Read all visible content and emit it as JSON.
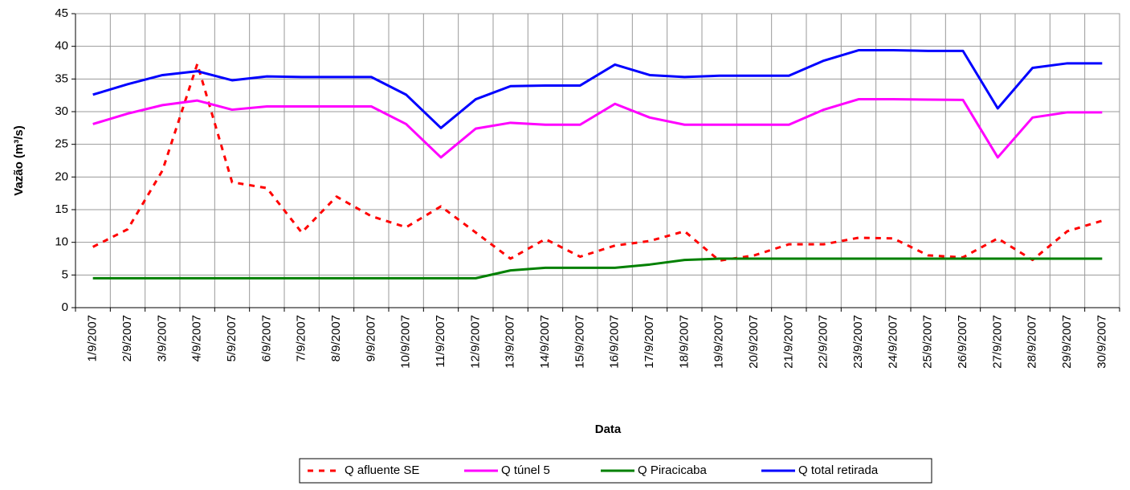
{
  "chart_data": {
    "type": "line",
    "x_label": "Data",
    "y_label": "Vazão (m³/s)",
    "categories": [
      "1/9/2007",
      "2/9/2007",
      "3/9/2007",
      "4/9/2007",
      "5/9/2007",
      "6/9/2007",
      "7/9/2007",
      "8/9/2007",
      "9/9/2007",
      "10/9/2007",
      "11/9/2007",
      "12/9/2007",
      "13/9/2007",
      "14/9/2007",
      "15/9/2007",
      "16/9/2007",
      "17/9/2007",
      "18/9/2007",
      "19/9/2007",
      "20/9/2007",
      "21/9/2007",
      "22/9/2007",
      "23/9/2007",
      "24/9/2007",
      "25/9/2007",
      "26/9/2007",
      "27/9/2007",
      "28/9/2007",
      "29/9/2007",
      "30/9/2007"
    ],
    "series": [
      {
        "name": "Q afluente SE",
        "color": "#ff0000",
        "dashed": true,
        "values": [
          9.3,
          12,
          21,
          37.3,
          19.2,
          18.3,
          11.5,
          17,
          14,
          12.3,
          15.5,
          11.5,
          7.5,
          10.5,
          7.8,
          9.5,
          10.2,
          11.7,
          7.2,
          8,
          9.7,
          9.7,
          10.7,
          10.6,
          8,
          7.7,
          10.6,
          7.3,
          11.7,
          13.3
        ]
      },
      {
        "name": "Q túnel 5",
        "color": "#ff00ff",
        "dashed": false,
        "values": [
          28.1,
          29.7,
          31,
          31.7,
          30.3,
          30.8,
          30.8,
          30.8,
          30.8,
          28.1,
          23,
          27.4,
          28.3,
          28,
          28,
          31.2,
          29.1,
          28,
          28,
          28,
          28,
          30.3,
          31.9,
          31.9,
          31.85,
          31.8,
          23,
          29.1,
          29.9,
          29.9
        ]
      },
      {
        "name": "Q Piracicaba",
        "color": "#008000",
        "dashed": false,
        "values": [
          4.5,
          4.5,
          4.5,
          4.5,
          4.5,
          4.5,
          4.5,
          4.5,
          4.5,
          4.5,
          4.5,
          4.5,
          5.7,
          6.1,
          6.1,
          6.1,
          6.6,
          7.3,
          7.5,
          7.5,
          7.5,
          7.5,
          7.5,
          7.5,
          7.5,
          7.5,
          7.5,
          7.5,
          7.5,
          7.5
        ]
      },
      {
        "name": "Q total retirada",
        "color": "#0000ff",
        "dashed": false,
        "values": [
          32.6,
          34.2,
          35.6,
          36.2,
          34.8,
          35.4,
          35.3,
          35.3,
          35.3,
          32.6,
          27.5,
          31.9,
          33.9,
          34,
          34,
          37.2,
          35.6,
          35.3,
          35.5,
          35.5,
          35.5,
          37.8,
          39.4,
          39.4,
          39.3,
          39.3,
          30.5,
          36.7,
          37.4,
          37.4
        ]
      }
    ],
    "ylim": [
      0,
      45
    ],
    "yticks": [
      0,
      5,
      10,
      15,
      20,
      25,
      30,
      35,
      40,
      45
    ],
    "grid": true,
    "legend": "bottom"
  }
}
